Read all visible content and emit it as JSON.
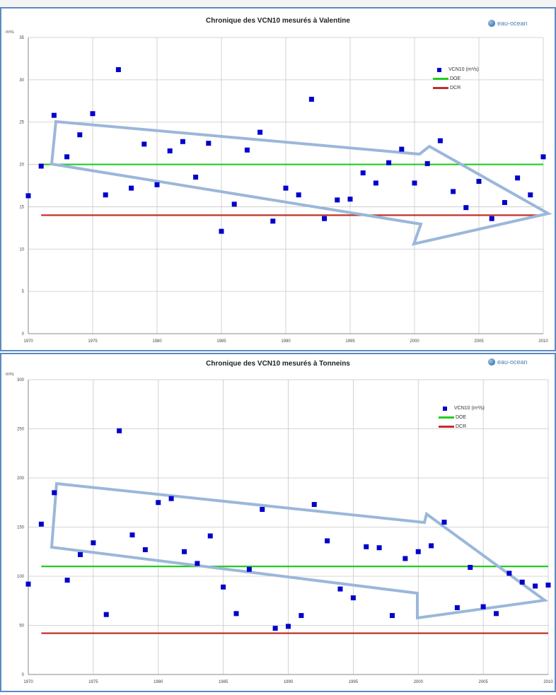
{
  "colors": {
    "series": "#0000cc",
    "doe": "#22cc22",
    "dcr": "#c0302a",
    "arrow": "#9bb7da",
    "border": "#5b8bc1",
    "grid": "#c8c8c8"
  },
  "logo": {
    "icon": "globe-icon",
    "text": "eau-ocean"
  },
  "chart_data": [
    {
      "type": "scatter",
      "title": "Chronique des VCN10 mesurés à Valentine",
      "ylabel": "m³/s",
      "xlim": [
        1970,
        2010
      ],
      "ylim": [
        0,
        35
      ],
      "yticks": [
        0,
        5,
        10,
        15,
        20,
        25,
        30,
        35
      ],
      "xticks": [
        1970,
        1975,
        1980,
        1985,
        1990,
        1995,
        2000,
        2005,
        2010
      ],
      "legend_placement": "top-right",
      "legend": [
        "VCN10 (m³/s)",
        "DOE",
        "DCR"
      ],
      "series": [
        {
          "name": "VCN10 (m³/s)",
          "points": [
            [
              1970,
              16.3
            ],
            [
              1971,
              19.8
            ],
            [
              1972,
              25.8
            ],
            [
              1973,
              20.9
            ],
            [
              1974,
              23.5
            ],
            [
              1975,
              26.0
            ],
            [
              1976,
              16.4
            ],
            [
              1977,
              31.2
            ],
            [
              1978,
              17.2
            ],
            [
              1979,
              22.4
            ],
            [
              1980,
              17.6
            ],
            [
              1981,
              21.6
            ],
            [
              1982,
              22.7
            ],
            [
              1983,
              18.5
            ],
            [
              1984,
              22.5
            ],
            [
              1985,
              12.1
            ],
            [
              1986,
              15.3
            ],
            [
              1987,
              21.7
            ],
            [
              1988,
              23.8
            ],
            [
              1989,
              13.3
            ],
            [
              1990,
              17.2
            ],
            [
              1991,
              16.4
            ],
            [
              1992,
              27.7
            ],
            [
              1993,
              13.6
            ],
            [
              1994,
              15.8
            ],
            [
              1995,
              15.9
            ],
            [
              1996,
              19.0
            ],
            [
              1997,
              17.8
            ],
            [
              1998,
              20.2
            ],
            [
              1999,
              21.8
            ],
            [
              2000,
              17.8
            ],
            [
              2001,
              20.1
            ],
            [
              2002,
              22.8
            ],
            [
              2003,
              16.8
            ],
            [
              2004,
              14.9
            ],
            [
              2005,
              18.0
            ],
            [
              2006,
              13.6
            ],
            [
              2007,
              15.5
            ],
            [
              2008,
              18.4
            ],
            [
              2009,
              16.4
            ],
            [
              2010,
              20.9
            ]
          ]
        },
        {
          "name": "DOE",
          "value": 20
        },
        {
          "name": "DCR",
          "value": 14
        }
      ]
    },
    {
      "type": "scatter",
      "title": "Chronique des VCN10 mesurés à Tonneins",
      "ylabel": "m³/s",
      "xlim": [
        1970,
        2010
      ],
      "ylim": [
        0,
        300
      ],
      "yticks": [
        0,
        50,
        100,
        150,
        200,
        250,
        300
      ],
      "xticks": [
        1970,
        1975,
        1980,
        1985,
        1990,
        1995,
        2000,
        2005,
        2010
      ],
      "legend_placement": "top-right",
      "legend": [
        "VCN10 (m³/s)",
        "DOE",
        "DCR"
      ],
      "series": [
        {
          "name": "VCN10 (m³/s)",
          "points": [
            [
              1970,
              92
            ],
            [
              1971,
              153
            ],
            [
              1972,
              185
            ],
            [
              1973,
              96
            ],
            [
              1974,
              122
            ],
            [
              1975,
              134
            ],
            [
              1976,
              61
            ],
            [
              1977,
              248
            ],
            [
              1978,
              142
            ],
            [
              1979,
              127
            ],
            [
              1980,
              175
            ],
            [
              1981,
              179
            ],
            [
              1982,
              125
            ],
            [
              1983,
              113
            ],
            [
              1984,
              141
            ],
            [
              1985,
              89
            ],
            [
              1986,
              62
            ],
            [
              1987,
              107
            ],
            [
              1988,
              168
            ],
            [
              1989,
              47
            ],
            [
              1990,
              49
            ],
            [
              1991,
              60
            ],
            [
              1992,
              173
            ],
            [
              1993,
              136
            ],
            [
              1994,
              87
            ],
            [
              1995,
              78
            ],
            [
              1996,
              130
            ],
            [
              1997,
              129
            ],
            [
              1998,
              60
            ],
            [
              1999,
              118
            ],
            [
              2000,
              125
            ],
            [
              2001,
              131
            ],
            [
              2002,
              155
            ],
            [
              2003,
              68
            ],
            [
              2004,
              109
            ],
            [
              2005,
              69
            ],
            [
              2006,
              62
            ],
            [
              2007,
              103
            ],
            [
              2008,
              94
            ],
            [
              2009,
              90
            ],
            [
              2010,
              91
            ]
          ]
        },
        {
          "name": "DOE",
          "value": 110
        },
        {
          "name": "DCR",
          "value": 42
        }
      ]
    }
  ]
}
